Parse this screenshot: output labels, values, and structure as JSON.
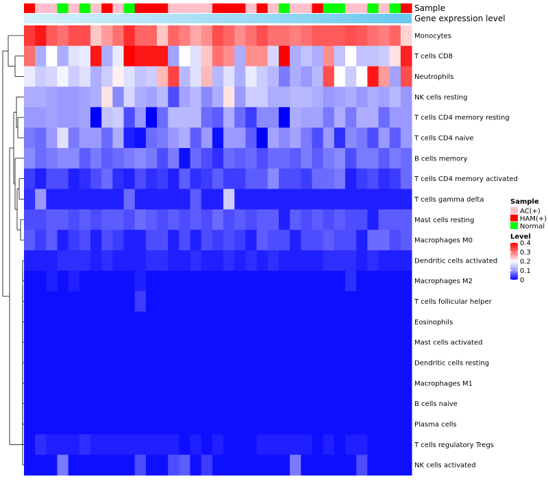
{
  "chart_data": {
    "type": "heatmap",
    "title": "",
    "annotations": {
      "sample_label": "Sample",
      "gene_label": "Gene expression level",
      "sample_groups": [
        "HAM(+)",
        "AC(+)",
        "AC(+)",
        "Normal",
        "AC(+)",
        "Normal",
        "AC(+)",
        "HAM(+)",
        "AC(+)",
        "Normal",
        "HAM(+)",
        "HAM(+)",
        "HAM(+)",
        "AC(+)",
        "AC(+)",
        "AC(+)",
        "AC(+)",
        "HAM(+)",
        "HAM(+)",
        "HAM(+)",
        "AC(+)",
        "HAM(+)",
        "AC(+)",
        "Normal",
        "AC(+)",
        "AC(+)",
        "HAM(+)",
        "Normal",
        "Normal",
        "AC(+)",
        "AC(+)",
        "Normal",
        "AC(+)",
        "Normal",
        "HAM(+)"
      ]
    },
    "rows": [
      "Monocytes",
      "T cells CD8",
      "Neutrophils",
      "NK cells resting",
      "T cells CD4 memory resting",
      "T cells CD4 naive",
      "B cells memory",
      "T cells CD4 memory activated",
      "T cells gamma delta",
      "Mast cells resting",
      "Macrophages M0",
      "Dendritic cells activated",
      "Macrophages M2",
      "T cells follicular helper",
      "Eosinophils",
      "Mast cells activated",
      "Dendritic cells resting",
      "Macrophages M1",
      "B cells naive",
      "Plasma cells",
      "T cells regulatory  Tregs",
      "NK cells activated"
    ],
    "values": [
      [
        0.35,
        0.38,
        0.32,
        0.3,
        0.33,
        0.33,
        0.24,
        0.27,
        0.3,
        0.36,
        0.31,
        0.31,
        0.24,
        0.31,
        0.29,
        0.26,
        0.28,
        0.33,
        0.31,
        0.28,
        0.3,
        0.33,
        0.3,
        0.3,
        0.29,
        0.3,
        0.32,
        0.32,
        0.32,
        0.33,
        0.32,
        0.3,
        0.29,
        0.31,
        0.23
      ],
      [
        0.3,
        0.12,
        0.2,
        0.12,
        0.17,
        0.18,
        0.38,
        0.12,
        0.18,
        0.4,
        0.38,
        0.38,
        0.38,
        0.11,
        0.2,
        0.17,
        0.24,
        0.3,
        0.28,
        0.12,
        0.28,
        0.28,
        0.16,
        0.4,
        0.12,
        0.14,
        0.12,
        0.28,
        0.14,
        0.2,
        0.14,
        0.14,
        0.15,
        0.22,
        0.37
      ],
      [
        0.18,
        0.15,
        0.16,
        0.19,
        0.15,
        0.17,
        0.12,
        0.15,
        0.21,
        0.17,
        0.14,
        0.15,
        0.25,
        0.34,
        0.13,
        0.17,
        0.25,
        0.13,
        0.17,
        0.12,
        0.18,
        0.15,
        0.13,
        0.08,
        0.12,
        0.1,
        0.13,
        0.33,
        0.2,
        0.15,
        0.2,
        0.38,
        0.27,
        0.11,
        0.33
      ],
      [
        0.12,
        0.12,
        0.11,
        0.1,
        0.1,
        0.11,
        0.12,
        0.22,
        0.09,
        0.16,
        0.12,
        0.11,
        0.13,
        0.05,
        0.11,
        0.13,
        0.09,
        0.12,
        0.22,
        0.1,
        0.15,
        0.15,
        0.12,
        0.12,
        0.13,
        0.13,
        0.12,
        0.1,
        0.11,
        0.12,
        0.1,
        0.12,
        0.11,
        0.13,
        0.1
      ],
      [
        0.1,
        0.1,
        0.11,
        0.1,
        0.1,
        0.11,
        0.0,
        0.14,
        0.15,
        0.05,
        0.1,
        0.0,
        0.07,
        0.13,
        0.13,
        0.13,
        0.07,
        0.06,
        0.12,
        0.07,
        0.04,
        0.09,
        0.09,
        0.0,
        0.12,
        0.11,
        0.11,
        0.08,
        0.12,
        0.08,
        0.12,
        0.12,
        0.07,
        0.1,
        0.1
      ],
      [
        0.08,
        0.07,
        0.1,
        0.17,
        0.08,
        0.1,
        0.1,
        0.07,
        0.12,
        0.02,
        0.01,
        0.07,
        0.08,
        0.1,
        0.12,
        0.06,
        0.1,
        0.01,
        0.1,
        0.1,
        0.06,
        0.0,
        0.11,
        0.09,
        0.11,
        0.08,
        0.05,
        0.1,
        0.03,
        0.09,
        0.08,
        0.05,
        0.1,
        0.06,
        0.1
      ],
      [
        0.09,
        0.07,
        0.08,
        0.09,
        0.09,
        0.06,
        0.08,
        0.06,
        0.07,
        0.08,
        0.09,
        0.08,
        0.05,
        0.08,
        0.01,
        0.07,
        0.05,
        0.03,
        0.07,
        0.06,
        0.07,
        0.05,
        0.07,
        0.07,
        0.06,
        0.08,
        0.06,
        0.08,
        0.09,
        0.05,
        0.08,
        0.08,
        0.06,
        0.08,
        0.07
      ],
      [
        0.04,
        0.02,
        0.05,
        0.05,
        0.02,
        0.03,
        0.05,
        0.07,
        0.03,
        0.02,
        0.05,
        0.03,
        0.04,
        0.02,
        0.06,
        0.03,
        0.04,
        0.06,
        0.04,
        0.04,
        0.06,
        0.06,
        0.09,
        0.05,
        0.05,
        0.04,
        0.07,
        0.07,
        0.08,
        0.02,
        0.04,
        0.05,
        0.03,
        0.04,
        0.07
      ],
      [
        0.03,
        0.1,
        0.02,
        0.02,
        0.02,
        0.02,
        0.02,
        0.02,
        0.02,
        0.07,
        0.02,
        0.02,
        0.02,
        0.02,
        0.02,
        0.06,
        0.02,
        0.02,
        0.15,
        0.02,
        0.02,
        0.02,
        0.02,
        0.02,
        0.02,
        0.02,
        0.02,
        0.02,
        0.02,
        0.02,
        0.02,
        0.02,
        0.02,
        0.02,
        0.02
      ],
      [
        0.05,
        0.05,
        0.06,
        0.06,
        0.05,
        0.06,
        0.05,
        0.06,
        0.06,
        0.05,
        0.07,
        0.06,
        0.05,
        0.06,
        0.05,
        0.06,
        0.05,
        0.07,
        0.05,
        0.06,
        0.05,
        0.06,
        0.06,
        0.02,
        0.06,
        0.05,
        0.06,
        0.05,
        0.06,
        0.05,
        0.05,
        0.02,
        0.06,
        0.06,
        0.06
      ],
      [
        0.06,
        0.04,
        0.06,
        0.02,
        0.04,
        0.05,
        0.02,
        0.05,
        0.04,
        0.02,
        0.02,
        0.05,
        0.05,
        0.02,
        0.05,
        0.02,
        0.05,
        0.04,
        0.05,
        0.04,
        0.02,
        0.06,
        0.05,
        0.05,
        0.02,
        0.05,
        0.05,
        0.06,
        0.05,
        0.05,
        0.02,
        0.07,
        0.07,
        0.05,
        0.06
      ],
      [
        0.02,
        0.02,
        0.02,
        0.03,
        0.03,
        0.03,
        0.02,
        0.03,
        0.02,
        0.02,
        0.02,
        0.03,
        0.03,
        0.02,
        0.02,
        0.03,
        0.02,
        0.02,
        0.03,
        0.02,
        0.03,
        0.02,
        0.03,
        0.02,
        0.02,
        0.02,
        0.02,
        0.03,
        0.03,
        0.03,
        0.02,
        0.03,
        0.02,
        0.02,
        0.02
      ],
      [
        0.01,
        0.01,
        0.02,
        0.01,
        0.02,
        0.01,
        0.01,
        0.01,
        0.01,
        0.01,
        0.02,
        0.01,
        0.01,
        0.01,
        0.01,
        0.01,
        0.01,
        0.01,
        0.01,
        0.01,
        0.01,
        0.01,
        0.01,
        0.01,
        0.01,
        0.01,
        0.01,
        0.01,
        0.01,
        0.03,
        0.01,
        0.01,
        0.01,
        0.01,
        0.01
      ],
      [
        0.01,
        0.01,
        0.01,
        0.01,
        0.01,
        0.01,
        0.01,
        0.01,
        0.01,
        0.01,
        0.04,
        0.01,
        0.01,
        0.01,
        0.01,
        0.01,
        0.01,
        0.01,
        0.01,
        0.01,
        0.01,
        0.01,
        0.01,
        0.01,
        0.01,
        0.01,
        0.01,
        0.01,
        0.01,
        0.01,
        0.01,
        0.01,
        0.01,
        0.01,
        0.01
      ],
      [
        0.01,
        0.01,
        0.01,
        0.01,
        0.01,
        0.01,
        0.01,
        0.01,
        0.01,
        0.01,
        0.01,
        0.01,
        0.01,
        0.01,
        0.01,
        0.01,
        0.01,
        0.01,
        0.01,
        0.01,
        0.01,
        0.01,
        0.01,
        0.01,
        0.01,
        0.01,
        0.01,
        0.01,
        0.01,
        0.01,
        0.01,
        0.01,
        0.01,
        0.01,
        0.01
      ],
      [
        0.01,
        0.01,
        0.01,
        0.01,
        0.01,
        0.01,
        0.01,
        0.01,
        0.01,
        0.01,
        0.01,
        0.01,
        0.01,
        0.01,
        0.01,
        0.01,
        0.01,
        0.01,
        0.01,
        0.01,
        0.01,
        0.01,
        0.01,
        0.01,
        0.01,
        0.01,
        0.01,
        0.01,
        0.01,
        0.01,
        0.01,
        0.01,
        0.01,
        0.01,
        0.01
      ],
      [
        0.01,
        0.01,
        0.01,
        0.01,
        0.01,
        0.01,
        0.01,
        0.01,
        0.01,
        0.01,
        0.01,
        0.01,
        0.01,
        0.01,
        0.01,
        0.01,
        0.01,
        0.01,
        0.01,
        0.01,
        0.01,
        0.01,
        0.01,
        0.01,
        0.01,
        0.01,
        0.01,
        0.01,
        0.01,
        0.01,
        0.01,
        0.01,
        0.01,
        0.01,
        0.01
      ],
      [
        0.01,
        0.01,
        0.01,
        0.01,
        0.01,
        0.01,
        0.01,
        0.01,
        0.01,
        0.01,
        0.01,
        0.01,
        0.01,
        0.01,
        0.01,
        0.01,
        0.01,
        0.01,
        0.01,
        0.01,
        0.01,
        0.01,
        0.01,
        0.01,
        0.01,
        0.01,
        0.01,
        0.01,
        0.01,
        0.01,
        0.01,
        0.01,
        0.01,
        0.01,
        0.01
      ],
      [
        0.01,
        0.01,
        0.01,
        0.01,
        0.01,
        0.01,
        0.01,
        0.01,
        0.01,
        0.01,
        0.01,
        0.01,
        0.01,
        0.01,
        0.01,
        0.01,
        0.01,
        0.01,
        0.01,
        0.01,
        0.01,
        0.01,
        0.01,
        0.01,
        0.01,
        0.01,
        0.01,
        0.01,
        0.01,
        0.01,
        0.01,
        0.01,
        0.01,
        0.01,
        0.01
      ],
      [
        0.01,
        0.01,
        0.01,
        0.01,
        0.01,
        0.01,
        0.01,
        0.01,
        0.01,
        0.01,
        0.01,
        0.01,
        0.01,
        0.01,
        0.01,
        0.01,
        0.01,
        0.01,
        0.01,
        0.01,
        0.01,
        0.01,
        0.01,
        0.01,
        0.01,
        0.01,
        0.01,
        0.01,
        0.01,
        0.01,
        0.01,
        0.01,
        0.01,
        0.01,
        0.01
      ],
      [
        0.01,
        0.03,
        0.02,
        0.02,
        0.02,
        0.03,
        0.02,
        0.02,
        0.02,
        0.02,
        0.02,
        0.02,
        0.02,
        0.02,
        0.01,
        0.02,
        0.01,
        0.02,
        0.01,
        0.01,
        0.01,
        0.02,
        0.02,
        0.02,
        0.02,
        0.02,
        0.01,
        0.02,
        0.01,
        0.02,
        0.02,
        0.01,
        0.01,
        0.01,
        0.01
      ],
      [
        0.01,
        0.01,
        0.01,
        0.08,
        0.01,
        0.01,
        0.01,
        0.01,
        0.01,
        0.01,
        0.05,
        0.01,
        0.01,
        0.05,
        0.06,
        0.01,
        0.04,
        0.01,
        0.01,
        0.01,
        0.01,
        0.01,
        0.01,
        0.01,
        0.08,
        0.01,
        0.01,
        0.01,
        0.01,
        0.01,
        0.05,
        0.01,
        0.01,
        0.01,
        0.01
      ]
    ],
    "color_scale": {
      "stops": [
        0,
        0.1,
        0.2,
        0.3,
        0.4
      ],
      "colors": [
        "#0000ff",
        "#9999ff",
        "#ffffff",
        "#ff7070",
        "#ff0000"
      ]
    },
    "legend_sample": {
      "title": "Sample",
      "entries": [
        {
          "label": "AC(+)",
          "color": "#ffc0cb"
        },
        {
          "label": "HAM(+)",
          "color": "#ff0000"
        },
        {
          "label": "Normal",
          "color": "#00ff00"
        }
      ]
    },
    "legend_level": {
      "title": "Level",
      "ticks": [
        "0.4",
        "0.3",
        "0.2",
        "0.1",
        "0"
      ],
      "tick_values": [
        0.4,
        0.3,
        0.2,
        0.1,
        0
      ]
    },
    "gene_expression_color": "#66c8f0",
    "legend_placement": "right"
  }
}
